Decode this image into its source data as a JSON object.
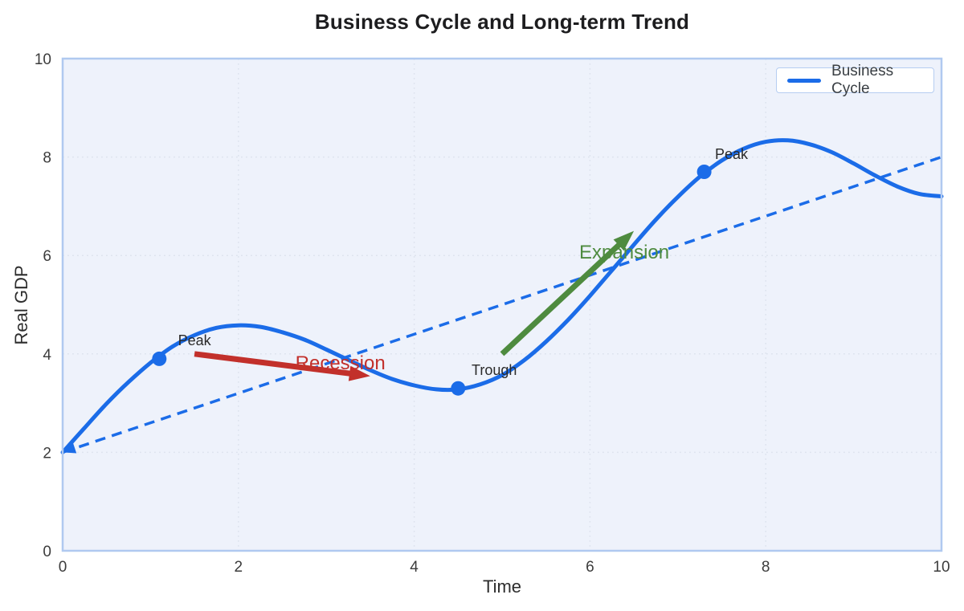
{
  "colors": {
    "accent_blue": "#1b6ce8",
    "recession_red": "#c2302b",
    "expansion_green": "#4e8b3f",
    "plot_bg": "#eef2fb",
    "plot_border": "#b0c9f0",
    "grid": "#dde3ee",
    "title_text": "#1d1d1f",
    "tick_text": "#3c3c3c",
    "marker_label_text": "#2a2a2a",
    "legend_text": "#3a3f44",
    "legend_border": "#b6cdf1"
  },
  "chart_data": {
    "type": "line",
    "title": "Business Cycle and Long-term Trend",
    "xlabel": "Time",
    "ylabel": "Real GDP",
    "xlim": [
      0,
      10
    ],
    "ylim": [
      0,
      10
    ],
    "xticks": [
      0,
      2,
      4,
      6,
      8,
      10
    ],
    "yticks": [
      0,
      2,
      4,
      6,
      8,
      10
    ],
    "grid": "dotted",
    "legend": {
      "position": "upper right",
      "entries": [
        {
          "label": "Business Cycle",
          "color": "#1b6ce8",
          "style": "solid"
        }
      ]
    },
    "series": [
      {
        "name": "Business Cycle",
        "style": "solid",
        "color": "#1b6ce8",
        "width": 5,
        "points": [
          [
            0,
            2.0
          ],
          [
            0.25,
            2.5
          ],
          [
            0.5,
            2.99
          ],
          [
            0.75,
            3.43
          ],
          [
            1,
            3.82
          ],
          [
            1.25,
            4.15
          ],
          [
            1.5,
            4.38
          ],
          [
            1.75,
            4.53
          ],
          [
            2,
            4.58
          ],
          [
            2.25,
            4.55
          ],
          [
            2.5,
            4.44
          ],
          [
            2.75,
            4.29
          ],
          [
            3,
            4.09
          ],
          [
            3.25,
            3.88
          ],
          [
            3.5,
            3.67
          ],
          [
            3.75,
            3.49
          ],
          [
            4,
            3.36
          ],
          [
            4.25,
            3.28
          ],
          [
            4.5,
            3.28
          ],
          [
            4.75,
            3.38
          ],
          [
            5,
            3.57
          ],
          [
            5.25,
            3.87
          ],
          [
            5.5,
            4.25
          ],
          [
            5.75,
            4.69
          ],
          [
            6,
            5.18
          ],
          [
            6.25,
            5.7
          ],
          [
            6.5,
            6.22
          ],
          [
            6.75,
            6.73
          ],
          [
            7,
            7.19
          ],
          [
            7.25,
            7.6
          ],
          [
            7.5,
            7.93
          ],
          [
            7.75,
            8.17
          ],
          [
            8,
            8.31
          ],
          [
            8.25,
            8.34
          ],
          [
            8.5,
            8.26
          ],
          [
            8.75,
            8.1
          ],
          [
            9,
            7.87
          ],
          [
            9.25,
            7.62
          ],
          [
            9.5,
            7.4
          ],
          [
            9.75,
            7.25
          ],
          [
            10,
            7.2
          ]
        ]
      },
      {
        "name": "Long-term Trend",
        "style": "dashed",
        "color": "#1b6ce8",
        "width": 3.5,
        "arrow_at_start": true,
        "points": [
          [
            0,
            2
          ],
          [
            10,
            8
          ]
        ]
      }
    ],
    "markers": [
      {
        "label": "Peak",
        "x": 1.1,
        "y": 3.9,
        "label_x": 1.5,
        "label_y": 4.27
      },
      {
        "label": "Trough",
        "x": 4.5,
        "y": 3.3,
        "label_x": 4.91,
        "label_y": 3.67
      },
      {
        "label": "Peak",
        "x": 7.3,
        "y": 7.7,
        "label_x": 7.61,
        "label_y": 8.06
      }
    ],
    "arrows": [
      {
        "label": "Recession",
        "from": [
          1.5,
          4.0
        ],
        "to": [
          3.5,
          3.55
        ],
        "color": "#c2302b",
        "label_x": 3.16,
        "label_y": 3.82
      },
      {
        "label": "Expansion",
        "from": [
          5.0,
          4.0
        ],
        "to": [
          6.5,
          6.5
        ],
        "color": "#4e8b3f",
        "label_x": 6.39,
        "label_y": 6.07
      }
    ]
  }
}
